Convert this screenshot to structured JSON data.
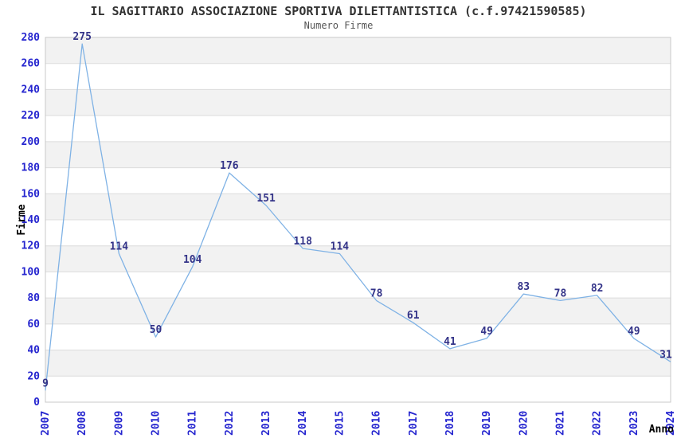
{
  "chart_data": {
    "type": "line",
    "title": "IL SAGITTARIO ASSOCIAZIONE SPORTIVA DILETTANTISTICA (c.f.97421590585)",
    "subtitle": "Numero Firme",
    "xlabel": "Anno",
    "ylabel": "Firme",
    "categories": [
      "2007",
      "2008",
      "2009",
      "2010",
      "2011",
      "2012",
      "2013",
      "2014",
      "2015",
      "2016",
      "2017",
      "2018",
      "2019",
      "2020",
      "2021",
      "2022",
      "2023",
      "2024"
    ],
    "values": [
      9,
      275,
      114,
      50,
      104,
      176,
      151,
      118,
      114,
      78,
      61,
      41,
      49,
      83,
      78,
      82,
      49,
      31
    ],
    "ylim": [
      0,
      280
    ],
    "ytick_step": 20,
    "grid": true,
    "band_fill": "alternating-horizontal",
    "legend": "none",
    "markers": "none",
    "colors": {
      "line": "#7fb2e5",
      "tick_label": "#2525cf",
      "data_label": "#333388",
      "band": "#f2f2f2",
      "grid": "#dcdcdc",
      "plot_border": "#c8c8c8",
      "title": "#333333",
      "subtitle": "#555555",
      "axis_title": "#000000",
      "background": "#ffffff"
    }
  }
}
